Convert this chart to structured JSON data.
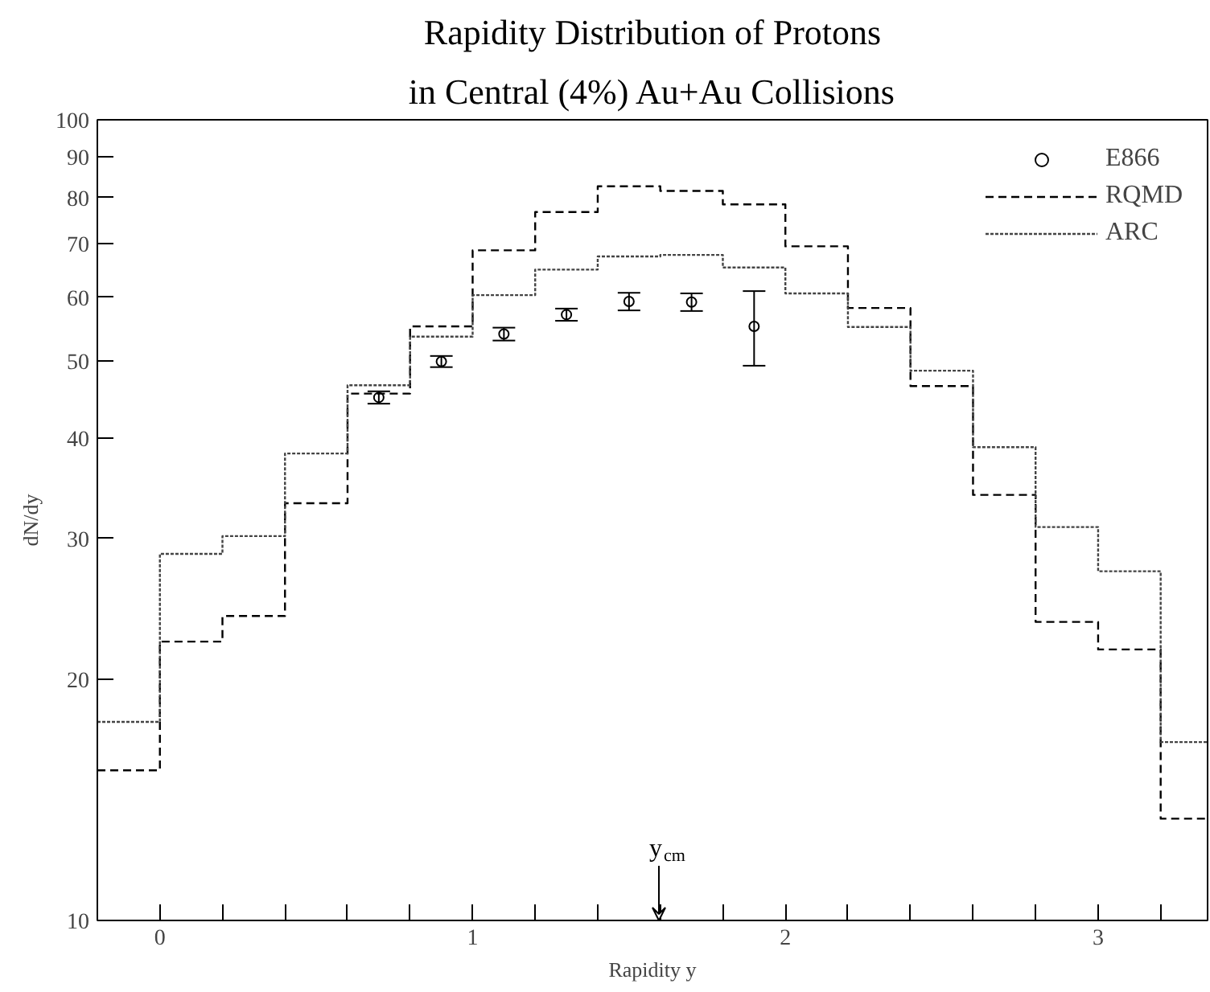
{
  "chart_data": {
    "type": "step",
    "title": "Rapidity Distribution of Protons",
    "subtitle": "in Central (4%) Au+Au Collisions",
    "xlabel": "Rapidity y",
    "ylabel": "dN/dy",
    "log": "y",
    "grid": false,
    "legend": "top right",
    "xlim": [
      -0.2,
      3.35
    ],
    "ylim": [
      10,
      100
    ],
    "xticks": [
      0,
      {
        "value": 0.2,
        "label": null
      },
      {
        "value": 0.4,
        "label": null
      },
      {
        "value": 0.6,
        "label": null
      },
      {
        "value": 0.8,
        "label": null
      },
      1,
      {
        "value": 1.2,
        "label": null
      },
      {
        "value": 1.4,
        "label": null
      },
      {
        "value": 1.6,
        "label": null
      },
      {
        "value": 1.8,
        "label": null
      },
      2,
      {
        "value": 2.2,
        "label": null
      },
      {
        "value": 2.4,
        "label": null
      },
      {
        "value": 2.6,
        "label": null
      },
      {
        "value": 2.8,
        "label": null
      },
      3,
      {
        "value": 3.2,
        "label": null
      }
    ],
    "yticks": [
      10,
      20,
      30,
      40,
      50,
      60,
      70,
      80,
      90,
      100
    ],
    "series": [
      {
        "name": "E866",
        "type": "scatter",
        "marker": "circle",
        "color": "#000000",
        "x": [
          0.7,
          0.9,
          1.1,
          1.3,
          1.5,
          1.7,
          1.9
        ],
        "values": [
          45.0,
          49.9,
          54.0,
          57.1,
          59.3,
          59.2,
          55.2
        ],
        "errors": [
          0.8,
          0.8,
          1.0,
          1.0,
          1.5,
          1.5,
          [
            49.3,
            61.1
          ]
        ]
      },
      {
        "name": "RQMD",
        "line_style": "dashed",
        "color": "#000000",
        "x": [
          -0.2,
          0,
          0.2,
          0.4,
          0.6,
          0.8,
          1.0,
          1.2,
          1.4,
          1.6,
          1.8,
          2.0,
          2.2,
          2.4,
          2.6,
          2.8,
          3.0,
          3.2
        ],
        "values": [
          15.4,
          22.3,
          24.0,
          33.2,
          45.5,
          55.2,
          68.7,
          76.7,
          82.6,
          81.5,
          78.4,
          69.5,
          58.2,
          46.5,
          34.0,
          23.6,
          21.8,
          13.4
        ]
      },
      {
        "name": "ARC",
        "line_style": "dotted",
        "color": "#444444",
        "x": [
          -0.2,
          0,
          0.2,
          0.4,
          0.6,
          0.8,
          1.0,
          1.2,
          1.4,
          1.6,
          1.8,
          2.0,
          2.2,
          2.4,
          2.6,
          2.8,
          3.0,
          3.2
        ],
        "values": [
          17.7,
          28.7,
          30.2,
          38.3,
          46.6,
          53.6,
          60.4,
          65.0,
          67.5,
          67.8,
          65.4,
          60.7,
          55.1,
          48.6,
          39.0,
          31.0,
          27.3,
          16.7
        ]
      }
    ],
    "annotations": [
      "y$_{cm}$"
    ]
  }
}
